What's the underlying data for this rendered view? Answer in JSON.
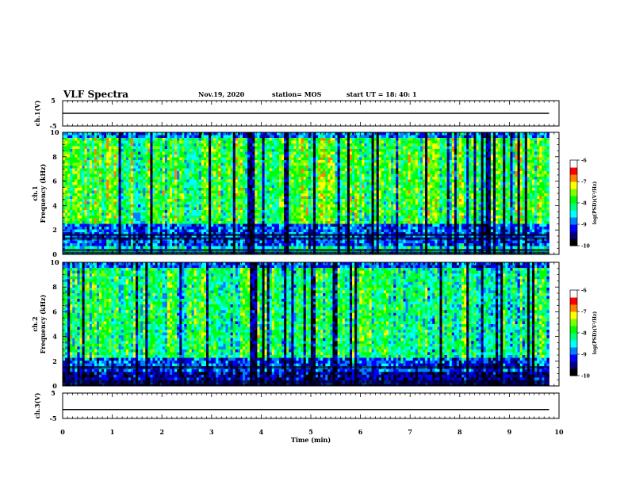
{
  "header": {
    "title": "VLF Spectra",
    "date": "Nov.19, 2020",
    "station": "station= MOS",
    "start": "start  UT =   18: 40: 1"
  },
  "chart_data": [
    {
      "type": "line",
      "name": "ch1-waveform",
      "ylabel": "ch.1(V)",
      "ylim": [
        -5,
        5
      ],
      "yticks": [
        "5",
        "-5"
      ],
      "x": [
        0,
        9.8
      ],
      "y": [
        0,
        0
      ],
      "xlim": [
        0,
        10
      ]
    },
    {
      "type": "heatmap",
      "name": "ch1-spectrogram",
      "ylabel": "ch.1\nFrequency  (kHz)",
      "ylim": [
        0,
        10
      ],
      "yticks": [
        "0",
        "2",
        "4",
        "6",
        "8",
        "10"
      ],
      "xlim": [
        0,
        10
      ],
      "data_xmax": 9.8,
      "colorbar": {
        "label": "log(PSD)(V²/Hz)",
        "range": [
          -10,
          -6
        ],
        "ticks": [
          "-6",
          "-7",
          "-8",
          "-9",
          "-10"
        ],
        "colors": [
          "#000000",
          "#000080",
          "#0000ff",
          "#0080ff",
          "#00ffff",
          "#00ff80",
          "#00ff00",
          "#80ff00",
          "#ffff00",
          "#ff8000",
          "#ff0000",
          "#ffffff"
        ]
      }
    },
    {
      "type": "heatmap",
      "name": "ch2-spectrogram",
      "ylabel": "ch.2\nFrequency  (kHz)",
      "ylim": [
        0,
        10
      ],
      "yticks": [
        "0",
        "2",
        "4",
        "6",
        "8",
        "10"
      ],
      "xlim": [
        0,
        10
      ],
      "data_xmax": 9.8,
      "colorbar": {
        "label": "log(PSD)(V²/Hz)",
        "range": [
          -10,
          -6
        ],
        "ticks": [
          "-6",
          "-7",
          "-8",
          "-9",
          "-10"
        ],
        "colors": [
          "#000000",
          "#000080",
          "#0000ff",
          "#0080ff",
          "#00ffff",
          "#00ff80",
          "#00ff00",
          "#80ff00",
          "#ffff00",
          "#ff8000",
          "#ff0000",
          "#ffffff"
        ]
      }
    },
    {
      "type": "line",
      "name": "ch3-waveform",
      "ylabel": "ch.3(V)",
      "ylim": [
        -5,
        5
      ],
      "yticks": [
        "5",
        "-5"
      ],
      "x": [
        0,
        9.8
      ],
      "y": [
        -1.5,
        -1.5
      ],
      "xlim": [
        0,
        10
      ],
      "xlabel": "Time  (min)",
      "xticks": [
        "0",
        "1",
        "2",
        "3",
        "4",
        "5",
        "6",
        "7",
        "8",
        "9",
        "10"
      ]
    }
  ]
}
